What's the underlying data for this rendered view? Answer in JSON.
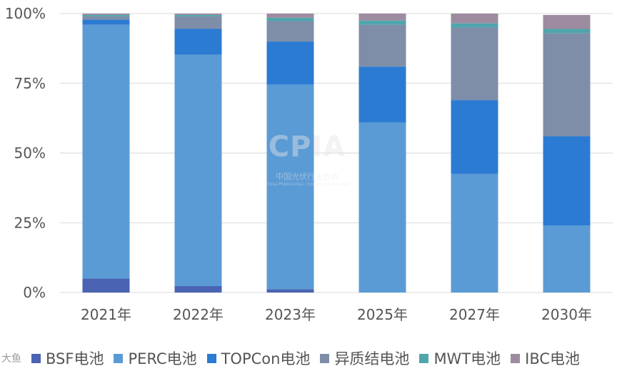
{
  "chart_data": {
    "type": "bar",
    "stacked": true,
    "percent": true,
    "categories": [
      "2021年",
      "2022年",
      "2023年",
      "2025年",
      "2027年",
      "2030年"
    ],
    "series": [
      {
        "name": "BSF电池",
        "color": "#4a63b3",
        "values": [
          5,
          2.3,
          1.2,
          0,
          0,
          0
        ]
      },
      {
        "name": "PERC电池",
        "color": "#5b9bd5",
        "values": [
          91,
          83,
          73.3,
          61,
          42.5,
          24
        ]
      },
      {
        "name": "TOPCon电池",
        "color": "#2b7bd3",
        "values": [
          1.8,
          9.2,
          15.5,
          20,
          26.5,
          32
        ]
      },
      {
        "name": "异质结电池",
        "color": "#7e8ea8",
        "values": [
          1.2,
          4.5,
          7.3,
          15,
          26,
          37
        ]
      },
      {
        "name": "MWT电池",
        "color": "#4fa6ad",
        "values": [
          0.5,
          0.5,
          1.2,
          1.5,
          1.5,
          1.5
        ]
      },
      {
        "name": "IBC电池",
        "color": "#9d8ba0",
        "values": [
          0.5,
          0.5,
          1.5,
          2.5,
          3.5,
          5
        ]
      }
    ],
    "yticks": [
      "0%",
      "25%",
      "50%",
      "75%",
      "100%"
    ],
    "ylim": [
      0,
      100
    ],
    "grid": true,
    "legend_position": "bottom"
  },
  "watermark": {
    "logo": "CPIA",
    "org_cn": "中国光伏行业协会",
    "org_en": "China Photovoltaic Industry Association"
  },
  "corner_mark": "大鱼"
}
